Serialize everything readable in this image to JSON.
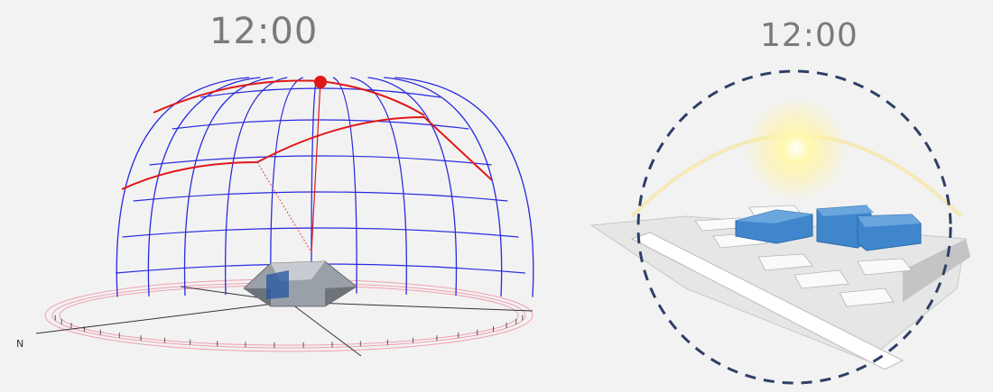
{
  "panels": {
    "left": {
      "time": "12:00",
      "compass_label": "N"
    },
    "right": {
      "time": "12:00"
    }
  },
  "colors": {
    "background": "#f2f2f2",
    "dome_grid": "#2a2ae0",
    "sun_path": "#e01818",
    "horizon_ring": "#f0a0b0",
    "dashed_circle": "#2f3f66",
    "building_blue": "#3f86cc",
    "sun_glow": "#fff6a0",
    "title_text": "#7a7a7a"
  },
  "icons": {
    "sun": "sun-icon",
    "building": "building-icon"
  }
}
